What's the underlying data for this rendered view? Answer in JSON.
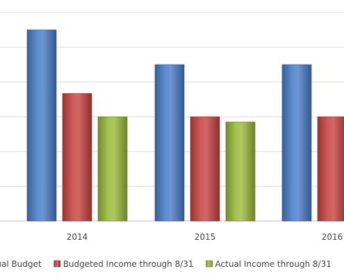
{
  "chart_data": {
    "type": "bar",
    "categories": [
      "2014",
      "2015",
      "2016"
    ],
    "ylim": [
      0,
      6
    ],
    "grid": true,
    "legend_position": "bottom",
    "series": [
      {
        "name": "Annual Budget",
        "color": "#4a7dc9",
        "values": [
          5.5,
          4.5,
          4.5
        ]
      },
      {
        "name": "Budgeted Income through 8/31",
        "color": "#c84543",
        "values": [
          3.67,
          3.0,
          3.0
        ]
      },
      {
        "name": "Actual Income through 8/31",
        "color": "#9bbb3b",
        "values": [
          3.0,
          2.85,
          null
        ]
      }
    ]
  }
}
